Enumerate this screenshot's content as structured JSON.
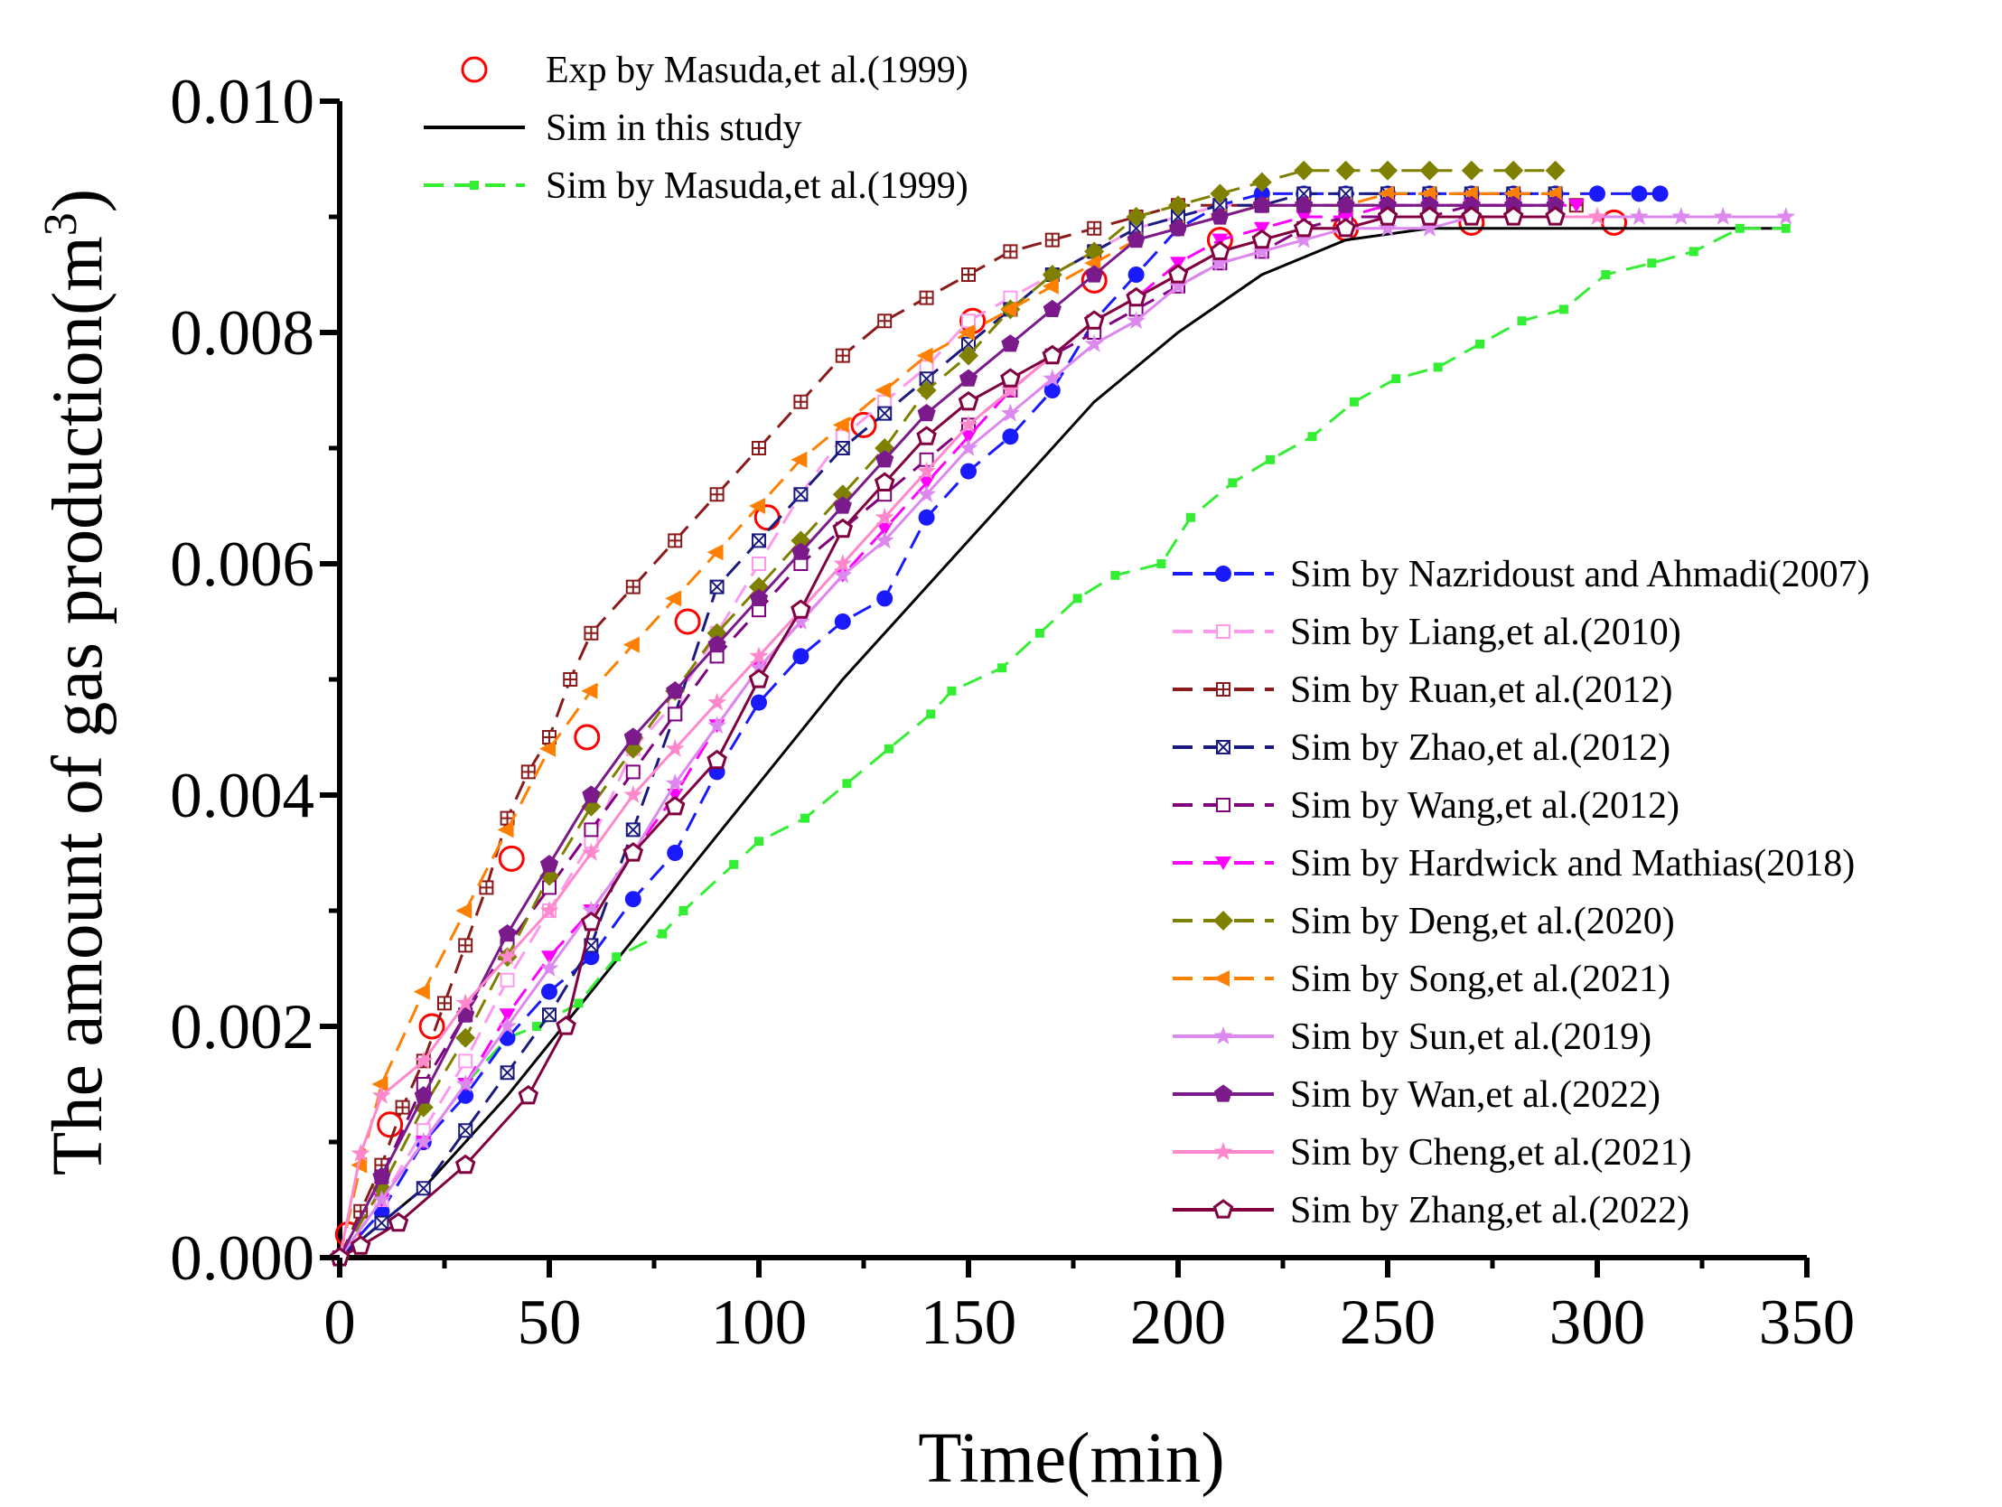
{
  "chart_data": {
    "type": "line",
    "title": "",
    "xlabel": "Time(min)",
    "ylabel_main": "The amount of gas production(m",
    "ylabel_sup": "3",
    "ylabel_close": ")",
    "xlim": [
      0,
      350
    ],
    "ylim": [
      0,
      0.01
    ],
    "xticks": [
      0,
      50,
      100,
      150,
      200,
      250,
      300,
      350
    ],
    "xtick_labels": [
      "0",
      "50",
      "100",
      "150",
      "200",
      "250",
      "300",
      "350"
    ],
    "yticks": [
      0,
      0.002,
      0.004,
      0.006,
      0.008,
      0.01
    ],
    "ytick_labels": [
      "0.000",
      "0.002",
      "0.004",
      "0.006",
      "0.008",
      "0.010"
    ],
    "grid": false,
    "legend_placement": [
      "top-left",
      "right-center"
    ],
    "series": [
      {
        "name": "Exp by Masuda,et al.(1999)",
        "color": "#ff0000",
        "marker": "circle-open",
        "line": "none",
        "x": [
          2,
          12,
          22,
          41,
          59,
          83,
          102,
          125,
          151,
          180,
          210,
          240,
          270,
          304
        ],
        "y": [
          0.0002,
          0.00115,
          0.002,
          0.00345,
          0.0045,
          0.0055,
          0.0064,
          0.0072,
          0.0081,
          0.00845,
          0.0088,
          0.0089,
          0.00895,
          0.00895
        ]
      },
      {
        "name": "Sim in this study",
        "color": "#000000",
        "marker": "none",
        "line": "solid",
        "x": [
          0,
          20,
          40,
          60,
          80,
          100,
          120,
          140,
          160,
          180,
          200,
          220,
          240,
          260,
          280,
          300,
          320,
          345
        ],
        "y": [
          0,
          0.0006,
          0.0014,
          0.0023,
          0.0032,
          0.0041,
          0.005,
          0.0058,
          0.0066,
          0.0074,
          0.008,
          0.0085,
          0.0088,
          0.0089,
          0.0089,
          0.0089,
          0.0089,
          0.0089
        ]
      },
      {
        "name": "Sim by Masuda,et al.(1999)",
        "color": "#33ee33",
        "marker": "square-filled",
        "line": "dashed",
        "x": [
          0,
          10,
          20,
          30,
          40,
          47,
          57,
          66,
          77,
          82,
          94,
          100,
          111,
          121,
          131,
          141,
          146,
          158,
          167,
          176,
          185,
          196,
          203,
          213,
          222,
          232,
          242,
          252,
          262,
          272,
          282,
          292,
          302,
          313,
          323,
          334,
          345
        ],
        "y": [
          0,
          0.0005,
          0.001,
          0.0015,
          0.0019,
          0.002,
          0.0022,
          0.0026,
          0.0028,
          0.003,
          0.0034,
          0.0036,
          0.0038,
          0.0041,
          0.0044,
          0.0047,
          0.0049,
          0.0051,
          0.0054,
          0.0057,
          0.0059,
          0.006,
          0.0064,
          0.0067,
          0.0069,
          0.0071,
          0.0074,
          0.0076,
          0.0077,
          0.0079,
          0.0081,
          0.0082,
          0.0085,
          0.0086,
          0.0087,
          0.0089,
          0.0089
        ]
      },
      {
        "name": "Sim by Nazridoust and Ahmadi(2007)",
        "color": "#1a1aff",
        "marker": "circle-filled",
        "line": "dashed",
        "x": [
          0,
          10,
          20,
          30,
          40,
          50,
          60,
          70,
          80,
          90,
          100,
          110,
          120,
          130,
          140,
          150,
          160,
          170,
          180,
          190,
          200,
          210,
          220,
          230,
          240,
          250,
          260,
          270,
          280,
          290,
          300,
          310,
          315
        ],
        "y": [
          0,
          0.0004,
          0.001,
          0.0014,
          0.0019,
          0.0023,
          0.0026,
          0.0031,
          0.0035,
          0.0042,
          0.0048,
          0.0052,
          0.0055,
          0.0057,
          0.0064,
          0.0068,
          0.0071,
          0.0075,
          0.0081,
          0.0085,
          0.0089,
          0.0091,
          0.0092,
          0.0092,
          0.0092,
          0.0092,
          0.0092,
          0.0092,
          0.0092,
          0.0092,
          0.0092,
          0.0092,
          0.0092
        ]
      },
      {
        "name": "Sim by Liang,et al.(2010)",
        "color": "#ff99ee",
        "marker": "square-open",
        "line": "dashed",
        "x": [
          0,
          10,
          20,
          30,
          40,
          50,
          60,
          70,
          80,
          90,
          100,
          110,
          120,
          130,
          140,
          150,
          160,
          170,
          180,
          190,
          200,
          210,
          220,
          230,
          240,
          250,
          260,
          270,
          280,
          290
        ],
        "y": [
          0,
          0.0005,
          0.0011,
          0.0017,
          0.0024,
          0.003,
          0.0036,
          0.0044,
          0.0048,
          0.0054,
          0.006,
          0.0066,
          0.0071,
          0.0074,
          0.0077,
          0.0081,
          0.0083,
          0.0085,
          0.0087,
          0.0089,
          0.009,
          0.0091,
          0.0091,
          0.0091,
          0.0091,
          0.0091,
          0.0091,
          0.0091,
          0.0091,
          0.0091
        ]
      },
      {
        "name": "Sim by Ruan,et al.(2012)",
        "color": "#8b1a1a",
        "marker": "square-plus",
        "line": "dashed",
        "x": [
          0,
          5,
          10,
          15,
          20,
          25,
          30,
          35,
          40,
          45,
          50,
          55,
          60,
          70,
          80,
          90,
          100,
          110,
          120,
          130,
          140,
          150,
          160,
          170,
          180,
          190,
          200,
          210,
          220,
          230,
          240,
          250,
          260,
          270,
          280,
          290,
          295
        ],
        "y": [
          0,
          0.0004,
          0.0008,
          0.0013,
          0.0017,
          0.0022,
          0.0027,
          0.0032,
          0.0038,
          0.0042,
          0.0045,
          0.005,
          0.0054,
          0.0058,
          0.0062,
          0.0066,
          0.007,
          0.0074,
          0.0078,
          0.0081,
          0.0083,
          0.0085,
          0.0087,
          0.0088,
          0.0089,
          0.009,
          0.0091,
          0.0091,
          0.0091,
          0.0091,
          0.0091,
          0.0091,
          0.0091,
          0.0091,
          0.0091,
          0.0091,
          0.0091
        ]
      },
      {
        "name": "Sim by Zhao,et al.(2012)",
        "color": "#1a1a80",
        "marker": "square-x",
        "line": "dashed",
        "x": [
          0,
          10,
          20,
          30,
          40,
          50,
          60,
          70,
          80,
          90,
          100,
          110,
          120,
          130,
          140,
          150,
          160,
          170,
          180,
          190,
          200,
          210,
          220,
          230,
          240,
          250,
          260,
          270,
          280,
          290
        ],
        "y": [
          0,
          0.0003,
          0.0006,
          0.0011,
          0.0016,
          0.0021,
          0.0027,
          0.0037,
          0.0047,
          0.0058,
          0.0062,
          0.0066,
          0.007,
          0.0073,
          0.0076,
          0.0079,
          0.0082,
          0.0085,
          0.0087,
          0.0089,
          0.009,
          0.0091,
          0.0091,
          0.0092,
          0.0092,
          0.0092,
          0.0092,
          0.0092,
          0.0092,
          0.0092
        ]
      },
      {
        "name": "Sim by Wang,et al.(2012)",
        "color": "#800080",
        "marker": "square-open",
        "line": "dashed",
        "x": [
          0,
          10,
          20,
          30,
          40,
          50,
          60,
          70,
          80,
          90,
          100,
          110,
          120,
          130,
          140,
          150,
          160,
          170,
          180,
          190,
          200,
          210,
          220,
          230,
          240,
          250,
          260,
          270,
          280,
          290
        ],
        "y": [
          0,
          0.0007,
          0.0015,
          0.0021,
          0.0027,
          0.0032,
          0.0037,
          0.0042,
          0.0047,
          0.0052,
          0.0056,
          0.006,
          0.0063,
          0.0066,
          0.0069,
          0.0072,
          0.0075,
          0.0078,
          0.008,
          0.0082,
          0.0084,
          0.0086,
          0.0087,
          0.0089,
          0.009,
          0.009,
          0.009,
          0.0091,
          0.0091,
          0.0091
        ]
      },
      {
        "name": "Sim by Hardwick and Mathias(2018)",
        "color": "#ff00ff",
        "marker": "triangle-down",
        "line": "dashed",
        "x": [
          0,
          10,
          20,
          30,
          40,
          50,
          60,
          70,
          80,
          90,
          100,
          110,
          120,
          130,
          140,
          150,
          160,
          170,
          180,
          190,
          200,
          210,
          220,
          230,
          240,
          250,
          260,
          270,
          280,
          290,
          295
        ],
        "y": [
          0,
          0.0005,
          0.001,
          0.0015,
          0.0021,
          0.0026,
          0.003,
          0.0035,
          0.004,
          0.0046,
          0.0051,
          0.0055,
          0.0059,
          0.0063,
          0.0067,
          0.0071,
          0.0075,
          0.0078,
          0.0081,
          0.0083,
          0.0086,
          0.0088,
          0.0089,
          0.009,
          0.009,
          0.0091,
          0.0091,
          0.0091,
          0.0091,
          0.0091,
          0.0091
        ]
      },
      {
        "name": "Sim by Deng,et al.(2020)",
        "color": "#808000",
        "marker": "diamond-filled",
        "line": "dashed",
        "x": [
          0,
          10,
          20,
          30,
          40,
          50,
          60,
          70,
          80,
          90,
          100,
          110,
          120,
          130,
          140,
          150,
          160,
          170,
          180,
          190,
          200,
          210,
          220,
          230,
          240,
          250,
          260,
          270,
          280,
          290
        ],
        "y": [
          0,
          0.0006,
          0.0013,
          0.0019,
          0.0026,
          0.0033,
          0.0039,
          0.0044,
          0.0049,
          0.0054,
          0.0058,
          0.0062,
          0.0066,
          0.007,
          0.0075,
          0.0078,
          0.0082,
          0.0085,
          0.0087,
          0.009,
          0.0091,
          0.0092,
          0.0093,
          0.0094,
          0.0094,
          0.0094,
          0.0094,
          0.0094,
          0.0094,
          0.0094
        ]
      },
      {
        "name": "Sim by Song,et al.(2021)",
        "color": "#ff8000",
        "marker": "triangle-left",
        "line": "dashed",
        "x": [
          0,
          5,
          10,
          20,
          30,
          40,
          50,
          60,
          70,
          80,
          90,
          100,
          110,
          120,
          130,
          140,
          150,
          160,
          170,
          180,
          190,
          200,
          210,
          220,
          230,
          240,
          250,
          260,
          270,
          280,
          290
        ],
        "y": [
          0,
          0.0008,
          0.0015,
          0.0023,
          0.003,
          0.0037,
          0.0044,
          0.0049,
          0.0053,
          0.0057,
          0.0061,
          0.0065,
          0.0069,
          0.0072,
          0.0075,
          0.0078,
          0.008,
          0.0082,
          0.0084,
          0.0086,
          0.0088,
          0.0089,
          0.009,
          0.0091,
          0.0091,
          0.0091,
          0.0092,
          0.0092,
          0.0092,
          0.0092,
          0.0092
        ]
      },
      {
        "name": "Sim by Sun,et al.(2019)",
        "color": "#dd88ee",
        "marker": "star",
        "line": "solid",
        "x": [
          0,
          10,
          20,
          30,
          40,
          50,
          60,
          70,
          80,
          90,
          100,
          110,
          120,
          130,
          140,
          150,
          160,
          170,
          180,
          190,
          200,
          210,
          220,
          230,
          240,
          250,
          260,
          270,
          280,
          290,
          300,
          310,
          320,
          330,
          345
        ],
        "y": [
          0,
          0.0005,
          0.001,
          0.0015,
          0.002,
          0.0025,
          0.003,
          0.0035,
          0.0041,
          0.0046,
          0.0051,
          0.0055,
          0.0059,
          0.0062,
          0.0066,
          0.007,
          0.0073,
          0.0076,
          0.0079,
          0.0081,
          0.0084,
          0.0086,
          0.0087,
          0.0088,
          0.0089,
          0.0089,
          0.0089,
          0.009,
          0.009,
          0.009,
          0.009,
          0.009,
          0.009,
          0.009,
          0.009
        ]
      },
      {
        "name": "Sim by Wan,et al.(2022)",
        "color": "#7a1a8b",
        "marker": "pentagon-filled",
        "line": "solid",
        "x": [
          0,
          10,
          20,
          30,
          40,
          50,
          60,
          70,
          80,
          90,
          100,
          110,
          120,
          130,
          140,
          150,
          160,
          170,
          180,
          190,
          200,
          210,
          220,
          230,
          240,
          250,
          260,
          270,
          280,
          290
        ],
        "y": [
          0,
          0.0007,
          0.0014,
          0.0021,
          0.0028,
          0.0034,
          0.004,
          0.0045,
          0.0049,
          0.0053,
          0.0057,
          0.0061,
          0.0065,
          0.0069,
          0.0073,
          0.0076,
          0.0079,
          0.0082,
          0.0085,
          0.0088,
          0.0089,
          0.009,
          0.0091,
          0.0091,
          0.0091,
          0.0091,
          0.0091,
          0.0091,
          0.0091,
          0.0091
        ]
      },
      {
        "name": "Sim by Cheng,et al.(2021)",
        "color": "#ff88cc",
        "marker": "star",
        "line": "solid",
        "x": [
          0,
          5,
          10,
          20,
          30,
          40,
          50,
          60,
          70,
          80,
          90,
          100,
          110,
          120,
          130,
          140,
          150,
          160,
          170,
          180,
          190,
          200,
          210,
          220,
          230,
          240,
          250,
          260,
          270,
          280,
          290,
          300
        ],
        "y": [
          0,
          0.0009,
          0.0014,
          0.0017,
          0.0022,
          0.0026,
          0.003,
          0.0035,
          0.004,
          0.0044,
          0.0048,
          0.0052,
          0.0056,
          0.006,
          0.0064,
          0.0068,
          0.0072,
          0.0075,
          0.0078,
          0.0081,
          0.0083,
          0.0085,
          0.0087,
          0.0088,
          0.0089,
          0.0089,
          0.009,
          0.009,
          0.009,
          0.009,
          0.009,
          0.009
        ]
      },
      {
        "name": "Sim by Zhang,et al.(2022)",
        "color": "#800040",
        "marker": "pentagon-open",
        "line": "solid",
        "x": [
          0,
          5,
          14,
          30,
          45,
          54,
          60,
          70,
          80,
          90,
          100,
          110,
          120,
          130,
          140,
          150,
          160,
          170,
          180,
          190,
          200,
          210,
          220,
          230,
          240,
          250,
          260,
          270,
          280,
          290
        ],
        "y": [
          0,
          0.0001,
          0.0003,
          0.0008,
          0.0014,
          0.002,
          0.0029,
          0.0035,
          0.0039,
          0.0043,
          0.005,
          0.0056,
          0.0063,
          0.0067,
          0.0071,
          0.0074,
          0.0076,
          0.0078,
          0.0081,
          0.0083,
          0.0085,
          0.0087,
          0.0088,
          0.0089,
          0.0089,
          0.009,
          0.009,
          0.009,
          0.009,
          0.009
        ]
      }
    ]
  }
}
